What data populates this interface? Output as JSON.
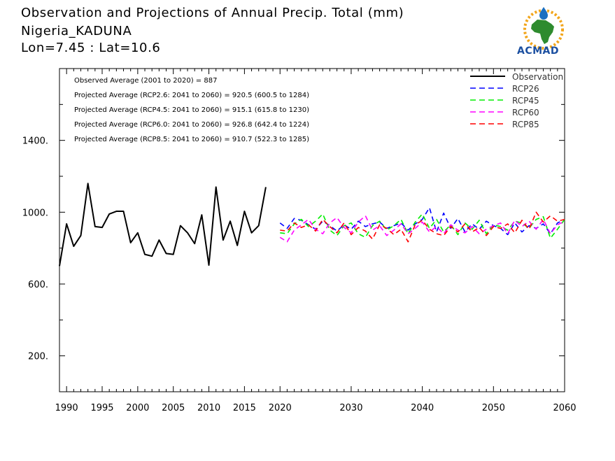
{
  "header": {
    "title_line1": "Observation and Projections of Annual Precip. Total (mm)",
    "title_line2": "Nigeria_KADUNA",
    "title_line3": "Lon=7.45 : Lat=10.6"
  },
  "logo": {
    "text": "ACMAD",
    "colors": {
      "africa": "#2e8b2e",
      "ring": "#f2a51a",
      "drop": "#1b6fc0",
      "text": "#1b4fa0"
    }
  },
  "stats": [
    "Observed Average (2001 to 2020) = 887",
    "Projected Average (RCP2.6: 2041 to 2060) = 920.5 (600.5 to 1284)",
    "Projected Average (RCP4.5: 2041 to 2060) = 915.1 (615.8 to 1230)",
    "Projected Average (RCP6.0: 2041 to 2060) = 926.8 (642.4 to 1224)",
    "Projected Average (RCP8.5: 2041 to 2060) = 910.7 (522.3 to 1285)"
  ],
  "chart_data": {
    "type": "line",
    "xlim": [
      1989,
      2060
    ],
    "ylim": [
      0,
      1800
    ],
    "yticks": [
      200,
      600,
      1000,
      1400
    ],
    "ytick_labels": [
      "200.",
      "600.",
      "1000.",
      "1400."
    ],
    "xticks": [
      1990,
      1995,
      2000,
      2005,
      2010,
      2015,
      2020,
      2030,
      2040,
      2050,
      2060
    ],
    "xtick_labels": [
      "1990",
      "1995",
      "2000",
      "2005",
      "2010",
      "2015",
      "2020",
      "2030",
      "2040",
      "2050",
      "2060"
    ],
    "legend_position": "top-right",
    "series": [
      {
        "name": "Observation",
        "color": "#000000",
        "dash": "solid",
        "x": [
          1989,
          1990,
          1991,
          1992,
          1993,
          1994,
          1995,
          1996,
          1997,
          1998,
          1999,
          2000,
          2001,
          2002,
          2003,
          2004,
          2005,
          2006,
          2007,
          2008,
          2009,
          2010,
          2011,
          2012,
          2013,
          2014,
          2015,
          2016,
          2017,
          2018,
          2019
        ],
        "values": [
          700,
          935,
          810,
          870,
          1160,
          920,
          915,
          990,
          1005,
          1005,
          830,
          885,
          765,
          755,
          845,
          770,
          765,
          925,
          885,
          825,
          985,
          705,
          1140,
          845,
          950,
          815,
          1005,
          885,
          925,
          1140,
          null
        ]
      },
      {
        "name": "RCP26",
        "color": "#0000ff",
        "dash": "dashed",
        "x": [
          2020,
          2021,
          2022,
          2023,
          2024,
          2025,
          2026,
          2027,
          2028,
          2029,
          2030,
          2031,
          2032,
          2033,
          2034,
          2035,
          2036,
          2037,
          2038,
          2039,
          2040,
          2041,
          2042,
          2043,
          2044,
          2045,
          2046,
          2047,
          2048,
          2049,
          2050,
          2051,
          2052,
          2053,
          2054,
          2055,
          2056,
          2057,
          2058,
          2059,
          2060
        ],
        "values": [
          940,
          910,
          965,
          955,
          930,
          905,
          950,
          925,
          895,
          930,
          905,
          950,
          920,
          935,
          945,
          910,
          925,
          940,
          900,
          935,
          960,
          1025,
          890,
          995,
          910,
          965,
          890,
          935,
          905,
          950,
          925,
          910,
          875,
          940,
          890,
          925,
          910,
          935,
          880,
          940,
          960
        ]
      },
      {
        "name": "RCP45",
        "color": "#00ee00",
        "dash": "dashed",
        "x": [
          2020,
          2021,
          2022,
          2023,
          2024,
          2025,
          2026,
          2027,
          2028,
          2029,
          2030,
          2031,
          2032,
          2033,
          2034,
          2035,
          2036,
          2037,
          2038,
          2039,
          2040,
          2041,
          2042,
          2043,
          2044,
          2045,
          2046,
          2047,
          2048,
          2049,
          2050,
          2051,
          2052,
          2053,
          2054,
          2055,
          2056,
          2057,
          2058,
          2059,
          2060
        ],
        "values": [
          885,
          880,
          935,
          960,
          920,
          950,
          990,
          900,
          870,
          925,
          940,
          880,
          860,
          925,
          950,
          900,
          925,
          960,
          880,
          945,
          990,
          910,
          960,
          890,
          930,
          875,
          940,
          905,
          955,
          880,
          930,
          920,
          900,
          950,
          940,
          910,
          960,
          975,
          855,
          905,
          960
        ]
      },
      {
        "name": "RCP60",
        "color": "#ff00ff",
        "dash": "dashed",
        "x": [
          2020,
          2021,
          2022,
          2023,
          2024,
          2025,
          2026,
          2027,
          2028,
          2029,
          2030,
          2031,
          2032,
          2033,
          2034,
          2035,
          2036,
          2037,
          2038,
          2039,
          2040,
          2041,
          2042,
          2043,
          2044,
          2045,
          2046,
          2047,
          2048,
          2049,
          2050,
          2051,
          2052,
          2053,
          2054,
          2055,
          2056,
          2057,
          2058,
          2059,
          2060
        ],
        "values": [
          860,
          835,
          900,
          930,
          960,
          905,
          880,
          940,
          970,
          915,
          885,
          945,
          980,
          900,
          925,
          870,
          900,
          935,
          880,
          910,
          945,
          890,
          920,
          880,
          930,
          900,
          885,
          920,
          880,
          905,
          925,
          940,
          880,
          955,
          920,
          950,
          905,
          960,
          880,
          930,
          950
        ]
      },
      {
        "name": "RCP85",
        "color": "#ff0000",
        "dash": "dashed",
        "x": [
          2020,
          2021,
          2022,
          2023,
          2024,
          2025,
          2026,
          2027,
          2028,
          2029,
          2030,
          2031,
          2032,
          2033,
          2034,
          2035,
          2036,
          2037,
          2038,
          2039,
          2040,
          2041,
          2042,
          2043,
          2044,
          2045,
          2046,
          2047,
          2048,
          2049,
          2050,
          2051,
          2052,
          2053,
          2054,
          2055,
          2056,
          2057,
          2058,
          2059,
          2060
        ],
        "values": [
          900,
          895,
          940,
          915,
          930,
          895,
          960,
          920,
          885,
          940,
          875,
          915,
          895,
          850,
          930,
          910,
          875,
          905,
          835,
          930,
          955,
          905,
          880,
          870,
          920,
          890,
          935,
          890,
          915,
          870,
          920,
          910,
          935,
          885,
          955,
          905,
          1000,
          945,
          980,
          950,
          960
        ]
      }
    ]
  }
}
